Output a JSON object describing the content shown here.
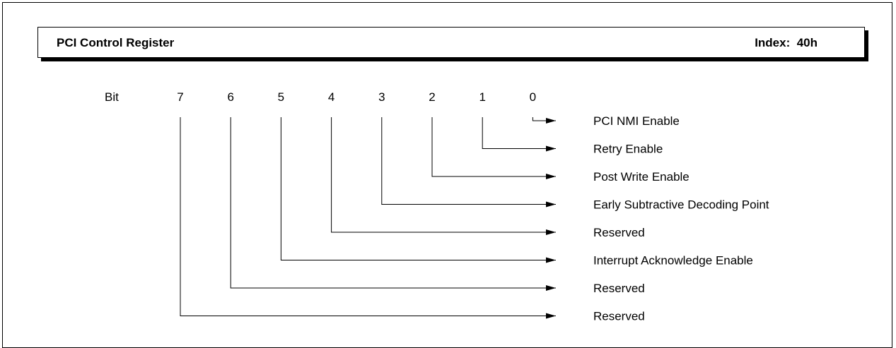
{
  "register": {
    "title": "PCI Control Register",
    "index": "Index:  40h"
  },
  "bit_header": "Bit",
  "bits": [
    {
      "number": "7",
      "label": "Reserved"
    },
    {
      "number": "6",
      "label": "Reserved"
    },
    {
      "number": "5",
      "label": "Interrupt Acknowledge Enable"
    },
    {
      "number": "4",
      "label": "Reserved"
    },
    {
      "number": "3",
      "label": "Early Subtractive Decoding Point"
    },
    {
      "number": "2",
      "label": "Post Write Enable"
    },
    {
      "number": "1",
      "label": "Retry Enable"
    },
    {
      "number": "0",
      "label": "PCI NMI Enable"
    }
  ]
}
